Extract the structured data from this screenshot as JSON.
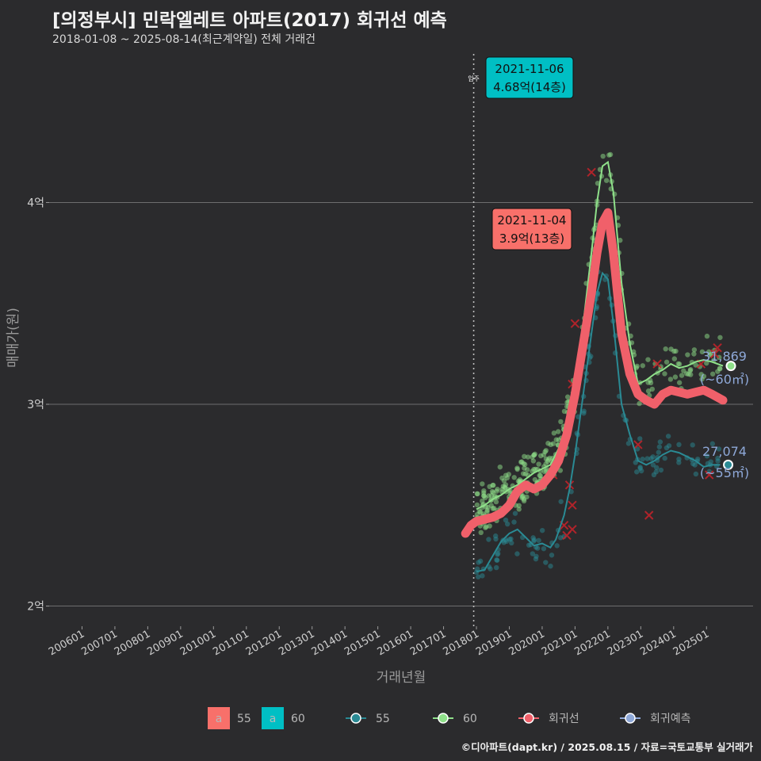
{
  "header": {
    "title": "[의정부시] 민락엘레트 아파트(2017) 회귀선 예측",
    "subtitle": "2018-01-08 ~ 2025-08-14(최근계약일) 전체 거래건"
  },
  "footer": "©디아파트(dapt.kr) / 2025.08.15 / 자료=국토교통부 실거래가",
  "colors": {
    "s55": "#2a8a94",
    "s60": "#8fe08a",
    "reg": "#f0606a",
    "pred": "#8ea8d8",
    "cross": "#c8222a",
    "label55": "#f8706a",
    "label60": "#00bfc4"
  },
  "chart_data": {
    "type": "scatter",
    "xlabel": "거래년월",
    "ylabel": "매매가(원)",
    "y_unit": "억원",
    "ylim": [
      1.9,
      4.76
    ],
    "xlim": [
      "2005-01",
      "2026-06"
    ],
    "yticks": [
      {
        "value": 2,
        "label": "2억"
      },
      {
        "value": 3,
        "label": "3억"
      },
      {
        "value": 4,
        "label": "4억"
      }
    ],
    "xticks": [
      "200601",
      "200701",
      "200801",
      "200901",
      "201001",
      "201101",
      "201201",
      "201301",
      "201401",
      "201501",
      "201601",
      "201701",
      "201801",
      "201901",
      "202001",
      "202101",
      "202201",
      "202301",
      "202401",
      "202501"
    ],
    "move_in": {
      "date": "2017-12",
      "label": "입주"
    },
    "series": [
      {
        "name": "55",
        "role": "trend",
        "points": [
          [
            "2018-01",
            2.17
          ],
          [
            "2018-04",
            2.18
          ],
          [
            "2018-07",
            2.25
          ],
          [
            "2018-10",
            2.32
          ],
          [
            "2019-01",
            2.36
          ],
          [
            "2019-04",
            2.38
          ],
          [
            "2019-07",
            2.34
          ],
          [
            "2019-10",
            2.3
          ],
          [
            "2020-01",
            2.31
          ],
          [
            "2020-04",
            2.29
          ],
          [
            "2020-06",
            2.33
          ],
          [
            "2020-09",
            2.45
          ],
          [
            "2020-11",
            2.58
          ],
          [
            "2021-01",
            2.75
          ],
          [
            "2021-04",
            3.05
          ],
          [
            "2021-07",
            3.35
          ],
          [
            "2021-09",
            3.55
          ],
          [
            "2021-11",
            3.65
          ],
          [
            "2022-01",
            3.62
          ],
          [
            "2022-03",
            3.4
          ],
          [
            "2022-06",
            3.0
          ],
          [
            "2022-09",
            2.85
          ],
          [
            "2022-12",
            2.72
          ],
          [
            "2023-03",
            2.7
          ],
          [
            "2023-06",
            2.72
          ],
          [
            "2023-09",
            2.75
          ],
          [
            "2023-12",
            2.77
          ],
          [
            "2024-03",
            2.76
          ],
          [
            "2024-06",
            2.74
          ],
          [
            "2024-09",
            2.72
          ],
          [
            "2024-12",
            2.69
          ],
          [
            "2025-03",
            2.7
          ],
          [
            "2025-06",
            2.7
          ]
        ]
      },
      {
        "name": "60",
        "role": "trend",
        "points": [
          [
            "2018-01",
            2.48
          ],
          [
            "2018-04",
            2.5
          ],
          [
            "2018-07",
            2.53
          ],
          [
            "2018-10",
            2.55
          ],
          [
            "2019-01",
            2.58
          ],
          [
            "2019-04",
            2.6
          ],
          [
            "2019-07",
            2.63
          ],
          [
            "2019-10",
            2.66
          ],
          [
            "2020-01",
            2.68
          ],
          [
            "2020-04",
            2.7
          ],
          [
            "2020-07",
            2.78
          ],
          [
            "2020-10",
            2.9
          ],
          [
            "2021-01",
            3.1
          ],
          [
            "2021-04",
            3.4
          ],
          [
            "2021-07",
            3.75
          ],
          [
            "2021-09",
            4.0
          ],
          [
            "2021-11",
            4.18
          ],
          [
            "2022-01",
            4.2
          ],
          [
            "2022-03",
            4.05
          ],
          [
            "2022-06",
            3.6
          ],
          [
            "2022-09",
            3.3
          ],
          [
            "2022-12",
            3.1
          ],
          [
            "2023-03",
            3.12
          ],
          [
            "2023-06",
            3.15
          ],
          [
            "2023-09",
            3.17
          ],
          [
            "2023-12",
            3.2
          ],
          [
            "2024-03",
            3.18
          ],
          [
            "2024-06",
            3.19
          ],
          [
            "2024-09",
            3.21
          ],
          [
            "2024-12",
            3.22
          ],
          [
            "2025-03",
            3.21
          ],
          [
            "2025-07",
            3.19
          ]
        ]
      },
      {
        "name": "회귀선",
        "role": "regression",
        "points": [
          [
            "2017-09",
            2.36
          ],
          [
            "2017-11",
            2.4
          ],
          [
            "2018-01",
            2.42
          ],
          [
            "2018-04",
            2.43
          ],
          [
            "2018-07",
            2.44
          ],
          [
            "2018-10",
            2.46
          ],
          [
            "2019-01",
            2.5
          ],
          [
            "2019-04",
            2.57
          ],
          [
            "2019-07",
            2.6
          ],
          [
            "2019-10",
            2.58
          ],
          [
            "2020-01",
            2.6
          ],
          [
            "2020-04",
            2.65
          ],
          [
            "2020-07",
            2.72
          ],
          [
            "2020-10",
            2.85
          ],
          [
            "2021-01",
            3.05
          ],
          [
            "2021-04",
            3.3
          ],
          [
            "2021-07",
            3.55
          ],
          [
            "2021-09",
            3.75
          ],
          [
            "2021-11",
            3.9
          ],
          [
            "2022-01",
            3.95
          ],
          [
            "2022-03",
            3.75
          ],
          [
            "2022-06",
            3.35
          ],
          [
            "2022-09",
            3.15
          ],
          [
            "2022-12",
            3.05
          ],
          [
            "2023-03",
            3.02
          ],
          [
            "2023-06",
            3.0
          ],
          [
            "2023-09",
            3.05
          ],
          [
            "2023-12",
            3.07
          ],
          [
            "2024-03",
            3.06
          ],
          [
            "2024-06",
            3.05
          ],
          [
            "2024-09",
            3.06
          ],
          [
            "2024-12",
            3.07
          ],
          [
            "2025-03",
            3.05
          ],
          [
            "2025-07",
            3.02
          ]
        ]
      }
    ],
    "scatter_clusters": [
      {
        "series": "55",
        "count": 140,
        "x_from": "2018-01",
        "x_to": "2025-06",
        "follows": "55",
        "spread": 0.09
      },
      {
        "series": "60",
        "count": 320,
        "x_from": "2018-01",
        "x_to": "2025-07",
        "follows": "60",
        "spread": 0.1
      }
    ],
    "outlier_marks": [
      [
        "2020-05",
        2.65
      ],
      [
        "2020-09",
        2.4
      ],
      [
        "2020-10",
        2.35
      ],
      [
        "2020-12",
        2.38
      ],
      [
        "2020-12",
        2.5
      ],
      [
        "2020-11",
        2.6
      ],
      [
        "2020-12",
        3.1
      ],
      [
        "2021-01",
        3.4
      ],
      [
        "2021-07",
        4.15
      ],
      [
        "2022-12",
        2.8
      ],
      [
        "2023-04",
        2.45
      ],
      [
        "2023-07",
        3.2
      ],
      [
        "2024-11",
        3.2
      ],
      [
        "2025-02",
        2.65
      ],
      [
        "2025-04",
        3.25
      ],
      [
        "2025-05",
        3.28
      ]
    ],
    "callouts": [
      {
        "date_label": "2021-11-06",
        "value_label": "4.68억(14층)",
        "x": "2021-11",
        "y": 4.68,
        "series": "60"
      },
      {
        "date_label": "2021-11-04",
        "value_label": "3.9억(13층)",
        "x": "2021-11",
        "y": 3.9,
        "series": "55"
      }
    ],
    "end_labels": [
      {
        "value": "31,869",
        "area": "(~60㎡)",
        "series": "60"
      },
      {
        "value": "27,074",
        "area": "(~55㎡)",
        "series": "55"
      }
    ],
    "legend": {
      "box_items": [
        {
          "glyph": "a",
          "label": "55",
          "color_key": "label55"
        },
        {
          "glyph": "a",
          "label": "60",
          "color_key": "label60"
        }
      ],
      "line_items": [
        {
          "label": "55",
          "color_key": "s55"
        },
        {
          "label": "60",
          "color_key": "s60"
        },
        {
          "label": "회귀선",
          "color_key": "reg"
        },
        {
          "label": "회귀예측",
          "color_key": "pred"
        }
      ],
      "placement": "bottom"
    }
  }
}
